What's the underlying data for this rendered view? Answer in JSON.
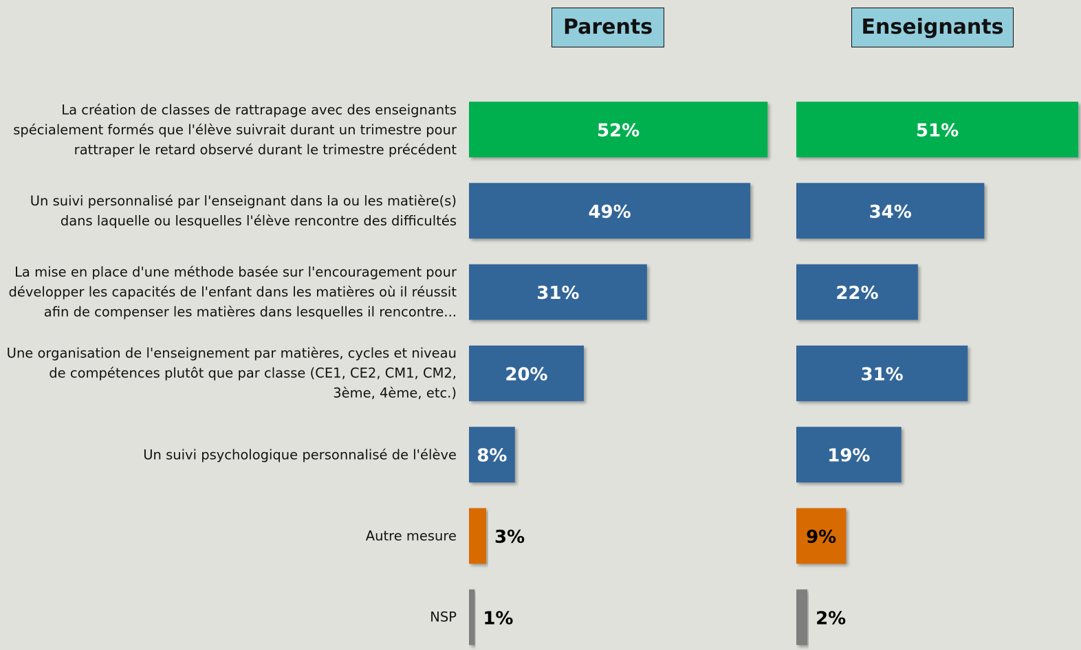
{
  "chart_data": {
    "type": "bar",
    "categories": [
      "La création de classes de rattrapage avec des enseignants spécialement formés que l'élève suivrait durant un trimestre pour rattraper le retard observé durant le trimestre précédent",
      "Un suivi personnalisé par l'enseignant dans la  ou les matière(s) dans laquelle ou lesquelles l'élève rencontre des difficultés",
      "La mise en place  d'une méthode basée sur l'encouragement pour développer les capacités de l'enfant dans les matières où il réussit afin de compenser les matières dans lesquelles il rencontre...",
      "Une organisation de l'enseignement par matières, cycles et niveau de compétences plutôt que par classe (CE1, CE2, CM1, CM2, 3ème, 4ème, etc.)",
      "Un suivi psychologique personnalisé de l'élève",
      "Autre mesure",
      "NSP"
    ],
    "series": [
      {
        "name": "Parents",
        "values": [
          52,
          49,
          31,
          20,
          8,
          3,
          1
        ],
        "value_labels": [
          "52%",
          "49%",
          "31%",
          "20%",
          "8%",
          "3%",
          "1%"
        ],
        "colors": [
          "#00b050",
          "#336699",
          "#336699",
          "#336699",
          "#336699",
          "#d76b04",
          "#7f7f7f"
        ]
      },
      {
        "name": "Enseignants",
        "values": [
          51,
          34,
          22,
          31,
          19,
          9,
          2
        ],
        "value_labels": [
          "51%",
          "34%",
          "22%",
          "31%",
          "19%",
          "9%",
          "2%"
        ],
        "colors": [
          "#00b050",
          "#336699",
          "#336699",
          "#336699",
          "#336699",
          "#d76b04",
          "#7f7f7f"
        ]
      }
    ]
  }
}
